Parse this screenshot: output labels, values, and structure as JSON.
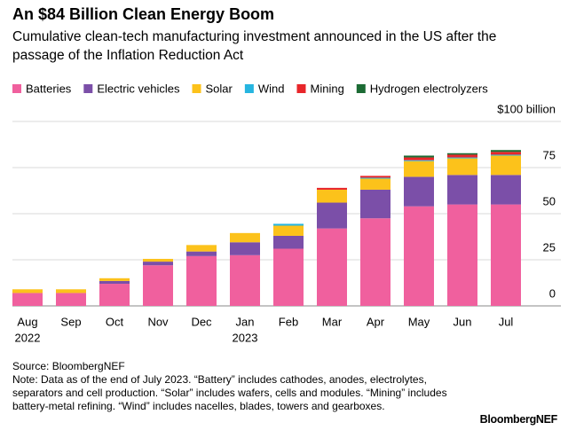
{
  "chart_data": {
    "type": "stacked_bar",
    "title": "An $84 Billion Clean Energy Boom",
    "subtitle": "Cumulative clean-tech manufacturing investment announced in the US after the passage of the Inflation Reduction Act",
    "categories": [
      "Aug",
      "Sep",
      "Oct",
      "Nov",
      "Dec",
      "Jan",
      "Feb",
      "Mar",
      "Apr",
      "May",
      "Jun",
      "Jul"
    ],
    "x_sublabels": [
      "2022",
      null,
      null,
      null,
      null,
      "2023",
      null,
      null,
      null,
      null,
      null,
      null
    ],
    "series": [
      {
        "name": "Batteries",
        "color": "#f0609e",
        "values": [
          7,
          7,
          12,
          22,
          27,
          27.5,
          31,
          42,
          47.5,
          54,
          55,
          55
        ]
      },
      {
        "name": "Electric vehicles",
        "color": "#7b4fa8",
        "values": [
          0,
          0,
          1.5,
          2,
          2.5,
          7,
          7,
          14,
          15.5,
          16,
          16,
          16
        ]
      },
      {
        "name": "Solar",
        "color": "#fcc21b",
        "values": [
          2,
          2,
          1.5,
          1.5,
          3.5,
          5,
          5.5,
          7,
          6,
          8.5,
          9,
          10.5
        ]
      },
      {
        "name": "Wind",
        "color": "#26b5e0",
        "values": [
          0,
          0,
          0,
          0,
          0,
          0,
          1,
          0,
          0.5,
          0.5,
          0.5,
          0.5
        ]
      },
      {
        "name": "Mining",
        "color": "#e8262a",
        "values": [
          0,
          0,
          0,
          0,
          0,
          0,
          0,
          1,
          1,
          1.5,
          1.5,
          1.5
        ]
      },
      {
        "name": "Hydrogen electrolyzers",
        "color": "#1c6b34",
        "values": [
          0,
          0,
          0,
          0,
          0,
          0,
          0,
          0,
          0,
          1,
          0.8,
          1
        ]
      }
    ],
    "ylim": [
      0,
      100
    ],
    "yticks": [
      0,
      25,
      50,
      75,
      {
        "value": 100,
        "label": "$100 billion"
      }
    ],
    "grid": true,
    "source": "Source: BloombergNEF",
    "note": "Note: Data as of the end of July 2023. “Battery” includes cathodes, anodes, electrolytes, separators and cell production. “Solar” includes wafers, cells and modules. “Mining” includes battery-metal refining. “Wind” includes nacelles, blades, towers and gearboxes.",
    "brand": "BloombergNEF"
  }
}
